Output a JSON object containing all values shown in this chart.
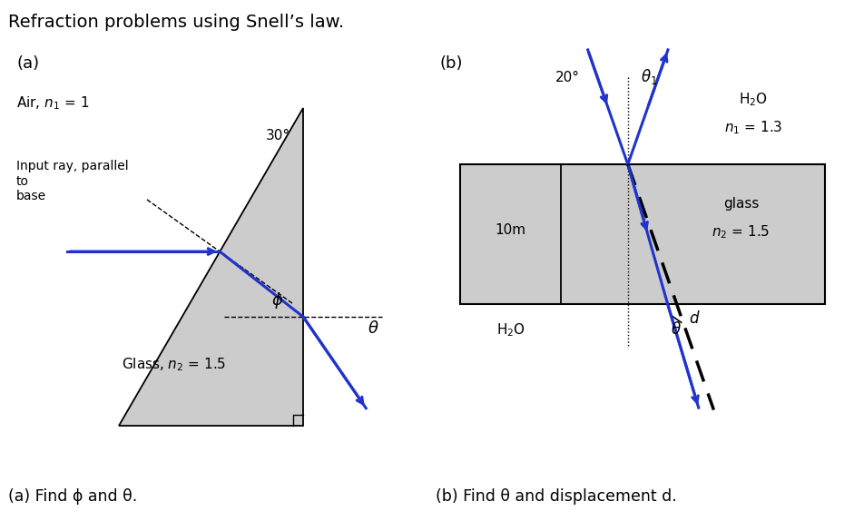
{
  "title": "Refraction problems using Snell’s law.",
  "title_fontsize": 14,
  "background_color": "#ffffff",
  "blue_color": "#2233cc",
  "gray_color": "#cccccc",
  "caption_a": "(a) Find ϕ and θ.",
  "caption_b": "(b) Find θ and displacement d.",
  "label_a": "(a)",
  "label_b": "(b)"
}
